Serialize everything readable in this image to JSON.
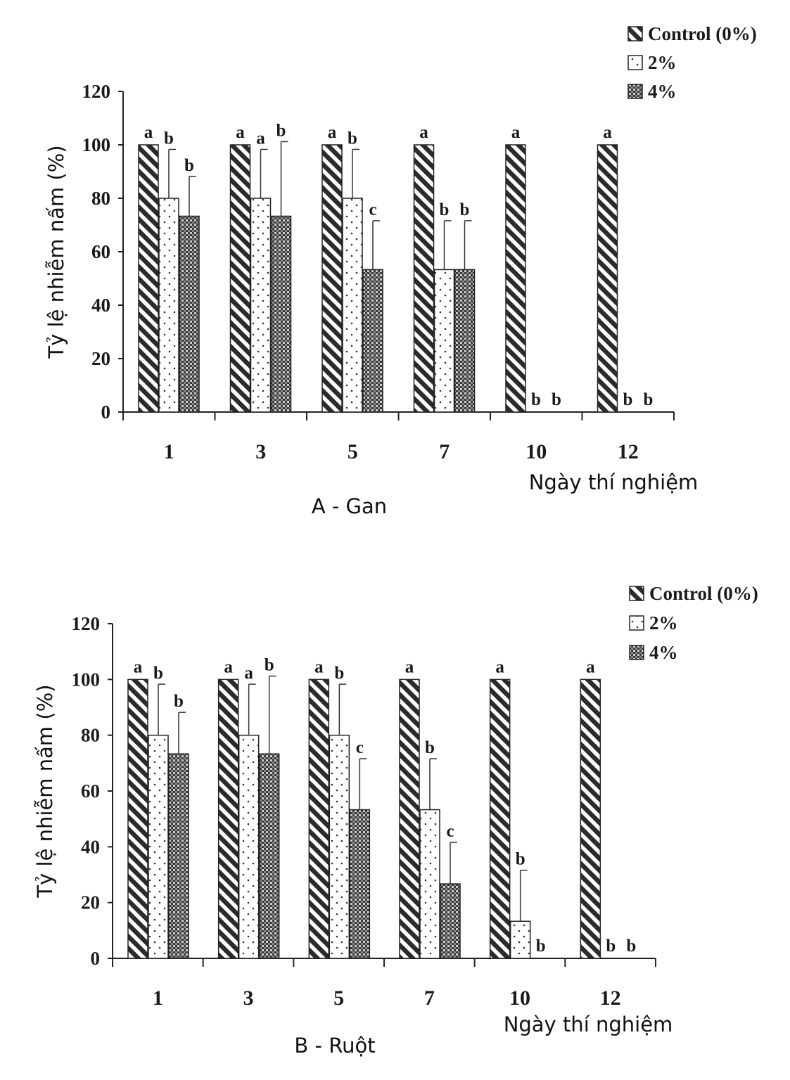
{
  "chart_data": [
    {
      "type": "bar",
      "caption": "A - Gan",
      "xlabel": "Ngày thí nghiệm",
      "ylabel": "Tỷ lệ nhiễm nấm (%)",
      "ylim": [
        0,
        120
      ],
      "yticks": [
        0,
        20,
        40,
        60,
        80,
        100,
        120
      ],
      "categories": [
        "1",
        "3",
        "5",
        "7",
        "10",
        "12"
      ],
      "legend_position": "top-right",
      "series": [
        {
          "name": "Control (0%)",
          "pattern": "diagonal-hatch",
          "values": [
            100,
            100,
            100,
            100,
            100,
            100
          ],
          "errors": [
            0,
            0,
            0,
            0,
            0,
            0
          ],
          "letters": [
            "a",
            "a",
            "a",
            "a",
            "a",
            "a"
          ]
        },
        {
          "name": "2%",
          "pattern": "dotted-white",
          "values": [
            80,
            80,
            80,
            53.3,
            0,
            0
          ],
          "errors": [
            18.3,
            18.3,
            18.3,
            18.3,
            0,
            0
          ],
          "letters": [
            "b",
            "a",
            "b",
            "b",
            "b",
            "b"
          ]
        },
        {
          "name": "4%",
          "pattern": "dark-checker",
          "values": [
            73.3,
            73.3,
            53.3,
            53.3,
            0,
            0
          ],
          "errors": [
            14.9,
            27.9,
            18.3,
            18.3,
            0,
            0
          ],
          "letters": [
            "b",
            "b",
            "c",
            "b",
            "b",
            "b"
          ]
        }
      ]
    },
    {
      "type": "bar",
      "caption": "B - Ruột",
      "xlabel": "Ngày thí nghiệm",
      "ylabel": "Tỷ lệ nhiễm nấm (%)",
      "ylim": [
        0,
        120
      ],
      "yticks": [
        0,
        20,
        40,
        60,
        80,
        100,
        120
      ],
      "categories": [
        "1",
        "3",
        "5",
        "7",
        "10",
        "12"
      ],
      "legend_position": "top-right",
      "series": [
        {
          "name": "Control (0%)",
          "pattern": "diagonal-hatch",
          "values": [
            100,
            100,
            100,
            100,
            100,
            100
          ],
          "errors": [
            0,
            0,
            0,
            0,
            0,
            0
          ],
          "letters": [
            "a",
            "a",
            "a",
            "a",
            "a",
            "a"
          ]
        },
        {
          "name": "2%",
          "pattern": "dotted-white",
          "values": [
            80,
            80,
            80,
            53.3,
            13.3,
            0
          ],
          "errors": [
            18.3,
            18.3,
            18.3,
            18.3,
            18.3,
            0
          ],
          "letters": [
            "b",
            "a",
            "b",
            "b",
            "b",
            "b"
          ]
        },
        {
          "name": "4%",
          "pattern": "dark-checker",
          "values": [
            73.3,
            73.3,
            53.3,
            26.7,
            0,
            0
          ],
          "errors": [
            14.9,
            27.9,
            18.3,
            14.9,
            0,
            0
          ],
          "letters": [
            "b",
            "b",
            "c",
            "c",
            "b",
            "b"
          ]
        }
      ]
    }
  ]
}
